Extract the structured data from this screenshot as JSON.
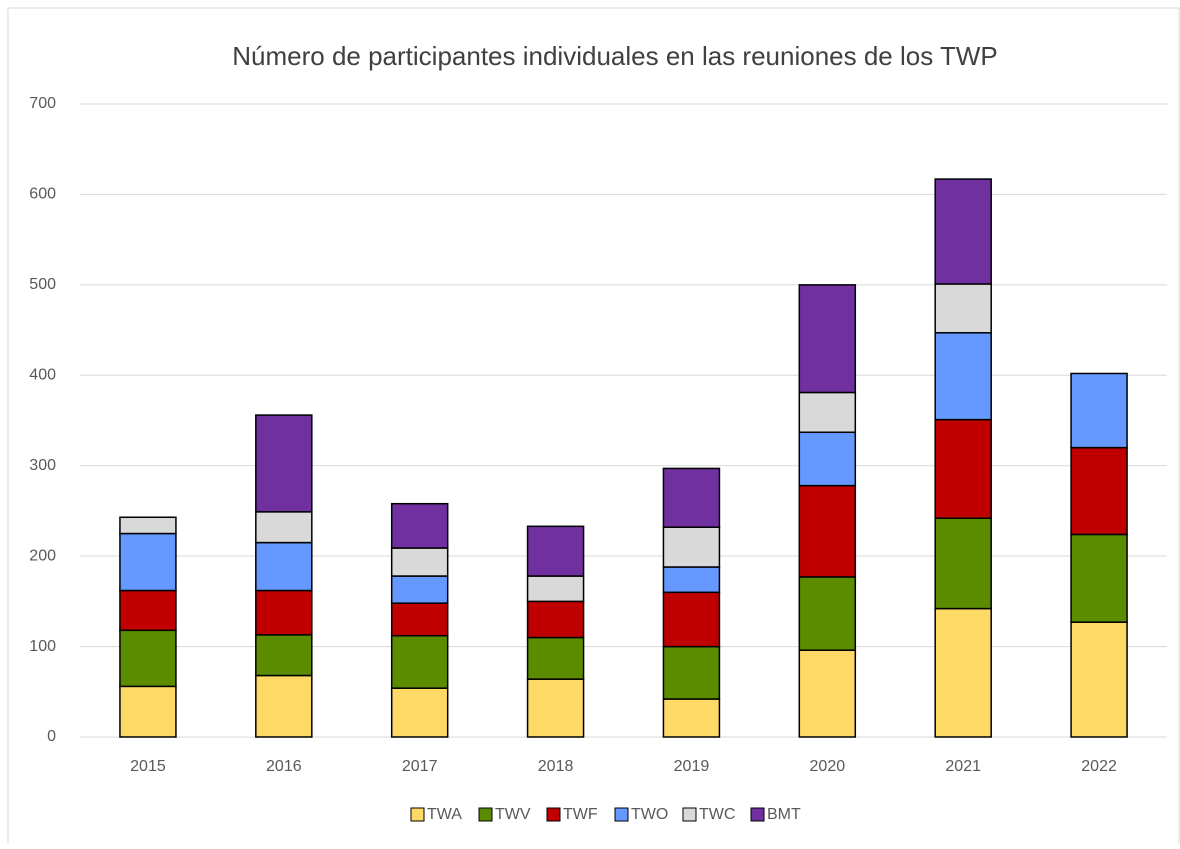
{
  "chart_data": {
    "type": "stacked_bar",
    "title": "Número de participantes individuales en las reuniones de los TWP",
    "categories": [
      "2015",
      "2016",
      "2017",
      "2018",
      "2019",
      "2020",
      "2021",
      "2022"
    ],
    "series": [
      {
        "name": "TWA",
        "color": "#ffd966",
        "values": [
          56,
          68,
          54,
          64,
          42,
          96,
          142,
          127
        ]
      },
      {
        "name": "TWV",
        "color": "#5b8c00",
        "values": [
          62,
          45,
          58,
          46,
          58,
          81,
          100,
          97
        ]
      },
      {
        "name": "TWF",
        "color": "#c00000",
        "values": [
          44,
          49,
          36,
          40,
          60,
          101,
          109,
          96
        ]
      },
      {
        "name": "TWO",
        "color": "#6699ff",
        "values": [
          63,
          53,
          30,
          0,
          28,
          59,
          96,
          82
        ]
      },
      {
        "name": "TWC",
        "color": "#d9d9d9",
        "values": [
          18,
          34,
          31,
          28,
          44,
          44,
          54,
          0
        ]
      },
      {
        "name": "BMT",
        "color": "#7030a0",
        "values": [
          0,
          107,
          49,
          55,
          65,
          119,
          116,
          0
        ]
      }
    ],
    "ylim": [
      0,
      700
    ],
    "yticks": [
      0,
      100,
      200,
      300,
      400,
      500,
      600,
      700
    ],
    "grid": true,
    "legend": "bottom"
  }
}
